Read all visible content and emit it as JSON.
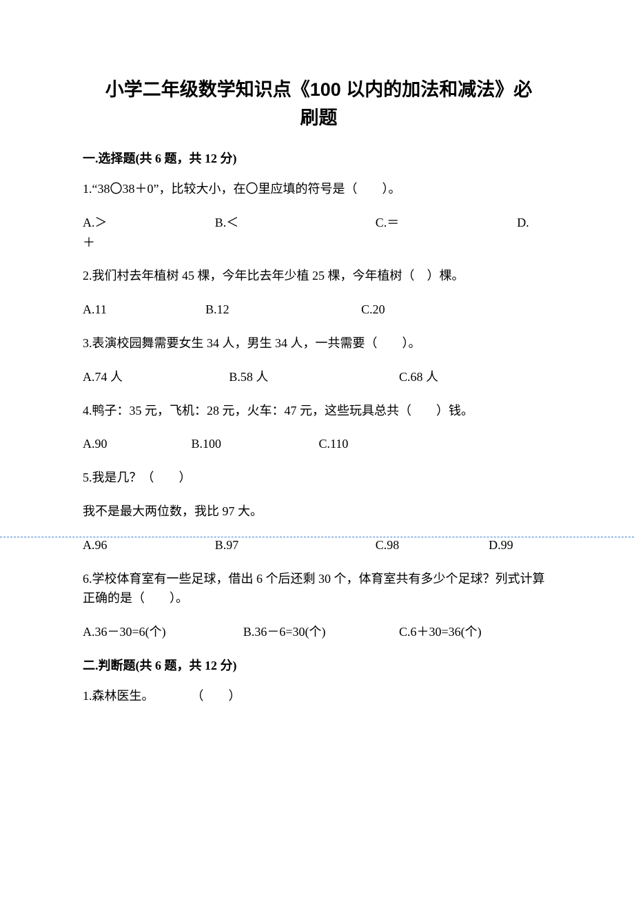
{
  "title_line1": "小学二年级数学知识点《100 以内的加法和减法》必",
  "title_line2": "刷题",
  "section1_header": "一.选择题(共 6 题，共 12 分)",
  "q1": {
    "text": "1.“38〇38＋0”，比较大小，在〇里应填的符号是（　　）。",
    "a": "A.＞",
    "b": "B.＜",
    "c": "C.＝",
    "d": "D.",
    "d2": "＋"
  },
  "q2": {
    "text": "2.我们村去年植树 45 棵，今年比去年少植 25 棵，今年植树（　）棵。",
    "a": "A.11",
    "b": "B.12",
    "c": "C.20"
  },
  "q3": {
    "text": "3.表演校园舞需要女生 34 人，男生 34 人，一共需要（　　）。",
    "a": "A.74 人",
    "b": "B.58 人",
    "c": "C.68 人"
  },
  "q4": {
    "text": "4.鸭子：35 元，飞机：28 元，火车：47 元，这些玩具总共（　　）钱。",
    "a": "A.90",
    "b": "B.100",
    "c": "C.110"
  },
  "q5": {
    "text": "5.我是几？（　　）",
    "text2": "我不是最大两位数，我比 97 大。",
    "a": "A.96",
    "b": "B.97",
    "c": "C.98",
    "d": "D.99"
  },
  "q6": {
    "text": "6.学校体育室有一些足球，借出 6 个后还剩 30 个，体育室共有多少个足球？列式计算正确的是（　　）。",
    "a": "A.36－30=6(个)",
    "b": "B.36－6=30(个)",
    "c": "C.6＋30=36(个)"
  },
  "section2_header": "二.判断题(共 6 题，共 12 分)",
  "p1": {
    "text": "1.森林医生。　　　　（　　）"
  },
  "divider_color": "#3b7fd6"
}
